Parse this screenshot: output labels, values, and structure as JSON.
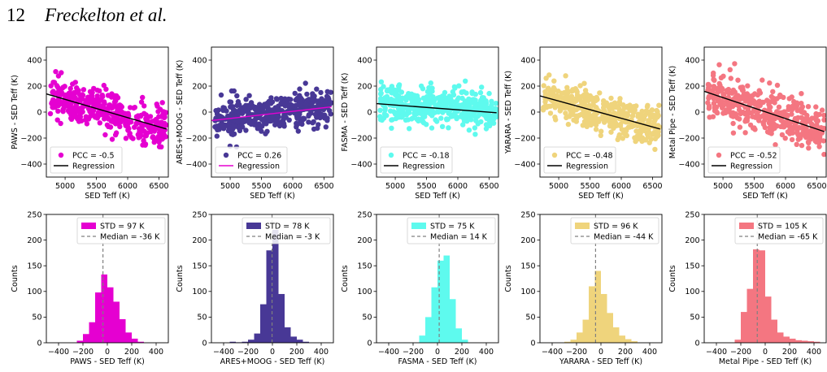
{
  "header": {
    "page_number": "12",
    "authors": "Freckelton et al."
  },
  "chart_data": [
    {
      "type": "scatter",
      "xlabel": "SED Teff (K)",
      "ylabel": "PAWS - SED Teff (K)",
      "xlim": [
        4700,
        6650
      ],
      "ylim": [
        -500,
        500
      ],
      "xticks": [
        5000,
        5500,
        6000,
        6500
      ],
      "yticks": [
        -400,
        -200,
        0,
        200,
        400
      ],
      "color": "#e500d1",
      "legend": {
        "position": "lower-left",
        "entries": [
          "PCC = -0.5",
          "Regression"
        ]
      },
      "regression": {
        "x": [
          4700,
          6620
        ],
        "y": [
          140,
          -130
        ]
      },
      "trend": {
        "slope": -0.14,
        "intercept": 790,
        "scatter_sd": 75
      }
    },
    {
      "type": "scatter",
      "xlabel": "SED Teff (K)",
      "ylabel": "ARES+MOOG - SED Teff (K)",
      "xlim": [
        4700,
        6650
      ],
      "ylim": [
        -500,
        500
      ],
      "xticks": [
        5000,
        5500,
        6000,
        6500
      ],
      "yticks": [
        -400,
        -200,
        0,
        200,
        400
      ],
      "color": "#483896",
      "line_color": "#e500d1",
      "legend": {
        "position": "lower-left",
        "entries": [
          "PCC = 0.26",
          "Regression"
        ]
      },
      "regression": {
        "x": [
          4700,
          6620
        ],
        "y": [
          -65,
          40
        ]
      },
      "trend": {
        "slope": 0.055,
        "intercept": -320,
        "scatter_sd": 65
      }
    },
    {
      "type": "scatter",
      "xlabel": "SED Teff (K)",
      "ylabel": "FASMA - SED Teff (K)",
      "xlim": [
        4700,
        6650
      ],
      "ylim": [
        -500,
        500
      ],
      "xticks": [
        5000,
        5500,
        6000,
        6500
      ],
      "yticks": [
        -400,
        -200,
        0,
        200,
        400
      ],
      "color": "#5efaee",
      "legend": {
        "position": "lower-left",
        "entries": [
          "PCC = -0.18",
          "Regression"
        ]
      },
      "regression": {
        "x": [
          4700,
          6620
        ],
        "y": [
          65,
          -5
        ]
      },
      "trend": {
        "slope": -0.035,
        "intercept": 240,
        "scatter_sd": 70
      }
    },
    {
      "type": "scatter",
      "xlabel": "SED Teff (K)",
      "ylabel": "YARARA - SED Teff (K)",
      "xlim": [
        4700,
        6650
      ],
      "ylim": [
        -500,
        500
      ],
      "xticks": [
        5000,
        5500,
        6000,
        6500
      ],
      "yticks": [
        -400,
        -200,
        0,
        200,
        400
      ],
      "color": "#efd47c",
      "legend": {
        "position": "lower-left",
        "entries": [
          "PCC = -0.48",
          "Regression"
        ]
      },
      "regression": {
        "x": [
          4700,
          6620
        ],
        "y": [
          125,
          -130
        ]
      },
      "trend": {
        "slope": -0.13,
        "intercept": 740,
        "scatter_sd": 75
      }
    },
    {
      "type": "scatter",
      "xlabel": "SED Teff (K)",
      "ylabel": "Metal Pipe - SED Teff (K)",
      "xlim": [
        4700,
        6650
      ],
      "ylim": [
        -500,
        500
      ],
      "xticks": [
        5000,
        5500,
        6000,
        6500
      ],
      "yticks": [
        -400,
        -200,
        0,
        200,
        400
      ],
      "color": "#f47681",
      "legend": {
        "position": "lower-left",
        "entries": [
          "PCC = -0.52",
          "Regression"
        ]
      },
      "regression": {
        "x": [
          4700,
          6620
        ],
        "y": [
          160,
          -150
        ]
      },
      "trend": {
        "slope": -0.16,
        "intercept": 900,
        "scatter_sd": 85
      }
    },
    {
      "type": "bar",
      "xlabel": "PAWS - SED Teff (K)",
      "ylabel": "Counts",
      "xlim": [
        -500,
        500
      ],
      "ylim": [
        0,
        250
      ],
      "xticks": [
        -400,
        -200,
        0,
        200,
        400
      ],
      "yticks": [
        0,
        50,
        100,
        150,
        200,
        250
      ],
      "color": "#e500d1",
      "median": -36,
      "legend": {
        "position": "top-right",
        "entries": [
          "STD = 97 K",
          "Median = -36 K"
        ]
      },
      "bins": [
        {
          "left": -250,
          "right": -200,
          "count": 4
        },
        {
          "left": -200,
          "right": -150,
          "count": 17
        },
        {
          "left": -150,
          "right": -100,
          "count": 40
        },
        {
          "left": -100,
          "right": -50,
          "count": 98
        },
        {
          "left": -50,
          "right": 0,
          "count": 133
        },
        {
          "left": 0,
          "right": 50,
          "count": 108
        },
        {
          "left": 50,
          "right": 100,
          "count": 80
        },
        {
          "left": 100,
          "right": 150,
          "count": 46
        },
        {
          "left": 150,
          "right": 200,
          "count": 20
        },
        {
          "left": 200,
          "right": 250,
          "count": 8
        },
        {
          "left": 250,
          "right": 300,
          "count": 2
        }
      ]
    },
    {
      "type": "bar",
      "xlabel": "ARES+MOOG - SED Teff (K)",
      "ylabel": "Counts",
      "xlim": [
        -500,
        500
      ],
      "ylim": [
        0,
        250
      ],
      "xticks": [
        -400,
        -200,
        0,
        200,
        400
      ],
      "yticks": [
        0,
        50,
        100,
        150,
        200,
        250
      ],
      "color": "#483896",
      "median": -3,
      "legend": {
        "position": "top-right",
        "entries": [
          "STD = 78 K",
          "Median = -3 K"
        ]
      },
      "bins": [
        {
          "left": -350,
          "right": -300,
          "count": 2
        },
        {
          "left": -300,
          "right": -250,
          "count": 1
        },
        {
          "left": -250,
          "right": -200,
          "count": 2
        },
        {
          "left": -200,
          "right": -150,
          "count": 6
        },
        {
          "left": -150,
          "right": -100,
          "count": 18
        },
        {
          "left": -100,
          "right": -50,
          "count": 75
        },
        {
          "left": -50,
          "right": 0,
          "count": 180
        },
        {
          "left": 0,
          "right": 50,
          "count": 220
        },
        {
          "left": 50,
          "right": 100,
          "count": 95
        },
        {
          "left": 100,
          "right": 150,
          "count": 30
        },
        {
          "left": 150,
          "right": 200,
          "count": 12
        },
        {
          "left": 200,
          "right": 250,
          "count": 6
        },
        {
          "left": 250,
          "right": 300,
          "count": 2
        }
      ]
    },
    {
      "type": "bar",
      "xlabel": "FASMA - SED Teff (K)",
      "ylabel": "Counts",
      "xlim": [
        -500,
        500
      ],
      "ylim": [
        0,
        250
      ],
      "xticks": [
        -400,
        -200,
        0,
        200,
        400
      ],
      "yticks": [
        0,
        50,
        100,
        150,
        200,
        250
      ],
      "color": "#5efaee",
      "median": 14,
      "legend": {
        "position": "top-right",
        "entries": [
          "STD = 75 K",
          "Median = 14 K"
        ]
      },
      "bins": [
        {
          "left": -150,
          "right": -100,
          "count": 14
        },
        {
          "left": -100,
          "right": -50,
          "count": 50
        },
        {
          "left": -50,
          "right": 0,
          "count": 108
        },
        {
          "left": 0,
          "right": 50,
          "count": 160
        },
        {
          "left": 50,
          "right": 100,
          "count": 170
        },
        {
          "left": 100,
          "right": 150,
          "count": 85
        },
        {
          "left": 150,
          "right": 200,
          "count": 28
        },
        {
          "left": 200,
          "right": 250,
          "count": 6
        }
      ]
    },
    {
      "type": "bar",
      "xlabel": "YARARA - SED Teff (K)",
      "ylabel": "Counts",
      "xlim": [
        -500,
        500
      ],
      "ylim": [
        0,
        250
      ],
      "xticks": [
        -400,
        -200,
        0,
        200,
        400
      ],
      "yticks": [
        0,
        50,
        100,
        150,
        200,
        250
      ],
      "color": "#efd47c",
      "median": -44,
      "legend": {
        "position": "top-right",
        "entries": [
          "STD = 96 K",
          "Median = -44 K"
        ]
      },
      "bins": [
        {
          "left": -300,
          "right": -250,
          "count": 2
        },
        {
          "left": -250,
          "right": -200,
          "count": 6
        },
        {
          "left": -200,
          "right": -150,
          "count": 20
        },
        {
          "left": -150,
          "right": -100,
          "count": 45
        },
        {
          "left": -100,
          "right": -50,
          "count": 110
        },
        {
          "left": -50,
          "right": 0,
          "count": 140
        },
        {
          "left": 0,
          "right": 50,
          "count": 95
        },
        {
          "left": 50,
          "right": 100,
          "count": 58
        },
        {
          "left": 100,
          "right": 150,
          "count": 30
        },
        {
          "left": 150,
          "right": 200,
          "count": 14
        },
        {
          "left": 200,
          "right": 250,
          "count": 7
        },
        {
          "left": 250,
          "right": 300,
          "count": 3
        }
      ]
    },
    {
      "type": "bar",
      "xlabel": "Metal Pipe - SED Teff (K)",
      "ylabel": "Counts",
      "xlim": [
        -500,
        500
      ],
      "ylim": [
        0,
        250
      ],
      "xticks": [
        -400,
        -200,
        0,
        200,
        400
      ],
      "yticks": [
        0,
        50,
        100,
        150,
        200,
        250
      ],
      "color": "#f47681",
      "median": -65,
      "legend": {
        "position": "top-right",
        "entries": [
          "STD = 105 K",
          "Median = -65 K"
        ]
      },
      "bins": [
        {
          "left": -250,
          "right": -200,
          "count": 6
        },
        {
          "left": -200,
          "right": -150,
          "count": 60
        },
        {
          "left": -150,
          "right": -100,
          "count": 105
        },
        {
          "left": -100,
          "right": -50,
          "count": 182
        },
        {
          "left": -50,
          "right": 0,
          "count": 180
        },
        {
          "left": 0,
          "right": 50,
          "count": 90
        },
        {
          "left": 50,
          "right": 100,
          "count": 45
        },
        {
          "left": 100,
          "right": 150,
          "count": 20
        },
        {
          "left": 150,
          "right": 200,
          "count": 12
        },
        {
          "left": 200,
          "right": 250,
          "count": 8
        },
        {
          "left": 250,
          "right": 300,
          "count": 5
        },
        {
          "left": 300,
          "right": 350,
          "count": 4
        },
        {
          "left": 350,
          "right": 400,
          "count": 3
        },
        {
          "left": 400,
          "right": 450,
          "count": 2
        }
      ]
    }
  ]
}
